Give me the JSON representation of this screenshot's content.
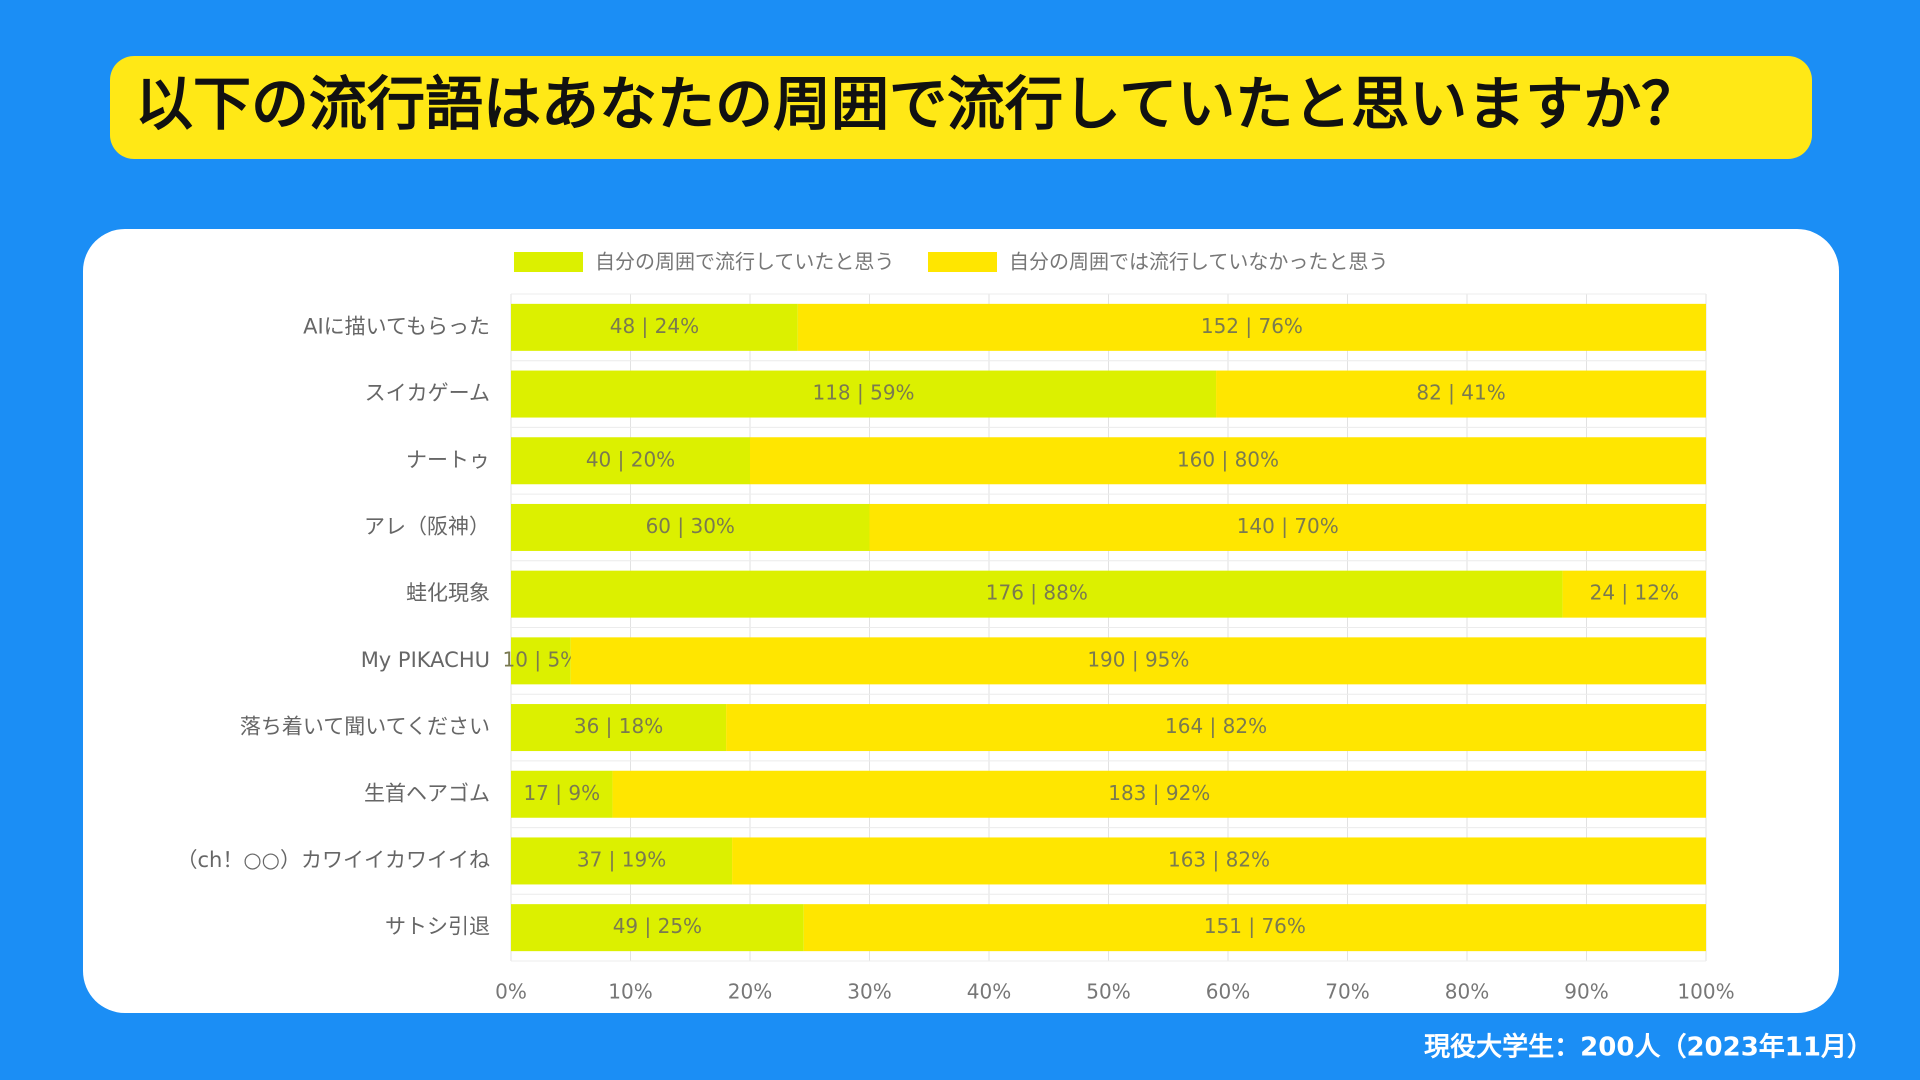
{
  "chart_data": {
    "type": "stacked_bar_horizontal",
    "title": "以下の流行語はあなたの周囲で流行していたと思いますか？",
    "note": "現役大学生：200人（2023年11月）",
    "categories": [
      "AIに描いてもらった",
      "スイカゲーム",
      "ナートゥ",
      "アレ（阪神）",
      "蛙化現象",
      "My PIKACHU",
      "落ち着いて聞いてください",
      "生首ヘアゴム",
      "（ch！○○）カワイイカワイイね",
      "サトシ引退"
    ],
    "series": [
      {
        "name": "自分の周囲で流行していたと思う",
        "color": "#dcf000",
        "values": [
          24,
          59,
          20,
          30,
          88,
          5,
          18,
          8.5,
          18.5,
          24.5
        ],
        "value_labels": [
          "48 | 24%",
          "118 | 59%",
          "40 | 20%",
          "60 | 30%",
          "176 | 88%",
          "10 | 5%",
          "36 | 18%",
          "17 | 9%",
          "37 | 19%",
          "49 | 25%"
        ]
      },
      {
        "name": "自分の周囲では流行していなかったと思う",
        "color": "#ffe600",
        "values": [
          76,
          41,
          80,
          70,
          12,
          95,
          82,
          91.5,
          81.5,
          75.5
        ],
        "value_labels": [
          "152 | 76%",
          "82 | 41%",
          "160 | 80%",
          "140 | 70%",
          "24 | 12%",
          "190 | 95%",
          "164 | 82%",
          "183 | 92%",
          "163 | 82%",
          "151 | 76%"
        ]
      }
    ],
    "xlim": [
      0,
      100
    ],
    "xticks": [
      {
        "value": 0,
        "label": "0%"
      },
      {
        "value": 10,
        "label": "10%"
      },
      {
        "value": 20,
        "label": "20%"
      },
      {
        "value": 30,
        "label": "30%"
      },
      {
        "value": 40,
        "label": "40%"
      },
      {
        "value": 50,
        "label": "50%"
      },
      {
        "value": 60,
        "label": "60%"
      },
      {
        "value": 70,
        "label": "70%"
      },
      {
        "value": 80,
        "label": "80%"
      },
      {
        "value": 90,
        "label": "90%"
      },
      {
        "value": 100,
        "label": "100%"
      }
    ],
    "grid": true,
    "legend": "top"
  }
}
